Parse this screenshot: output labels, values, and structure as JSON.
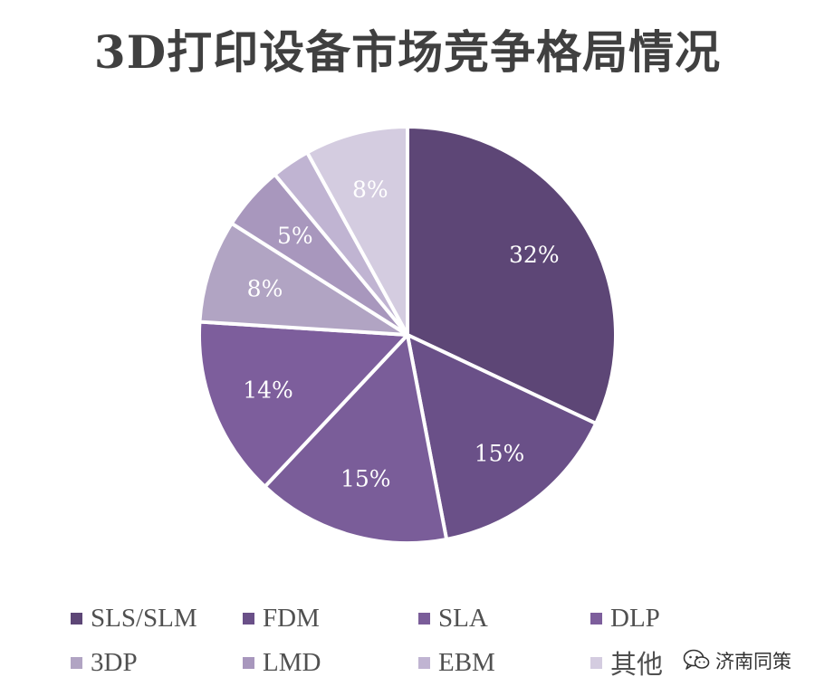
{
  "chart_data": {
    "type": "pie",
    "title": "3D打印设备市场竞争格局情况",
    "slices": [
      {
        "label": "SLS/SLM",
        "value": 32,
        "value_label": "32%",
        "color": "#5d4676"
      },
      {
        "label": "FDM",
        "value": 15,
        "value_label": "15%",
        "color": "#6a5088"
      },
      {
        "label": "SLA",
        "value": 15,
        "value_label": "15%",
        "color": "#7a5d99"
      },
      {
        "label": "DLP",
        "value": 14,
        "value_label": "14%",
        "color": "#7d5e9c"
      },
      {
        "label": "3DP",
        "value": 8,
        "value_label": "8%",
        "color": "#b1a4c3"
      },
      {
        "label": "LMD",
        "value": 5,
        "value_label": "5%",
        "color": "#a897bd"
      },
      {
        "label": "EBM",
        "value": 3,
        "value_label": "",
        "color": "#c0b4d2"
      },
      {
        "label": "其他",
        "value": 8,
        "value_label": "8%",
        "color": "#d4cce0"
      }
    ],
    "start_angle_deg": 0,
    "direction": "clockwise",
    "legend_position": "bottom"
  },
  "watermark": {
    "text": "济南同策",
    "icon": "wechat-icon"
  }
}
